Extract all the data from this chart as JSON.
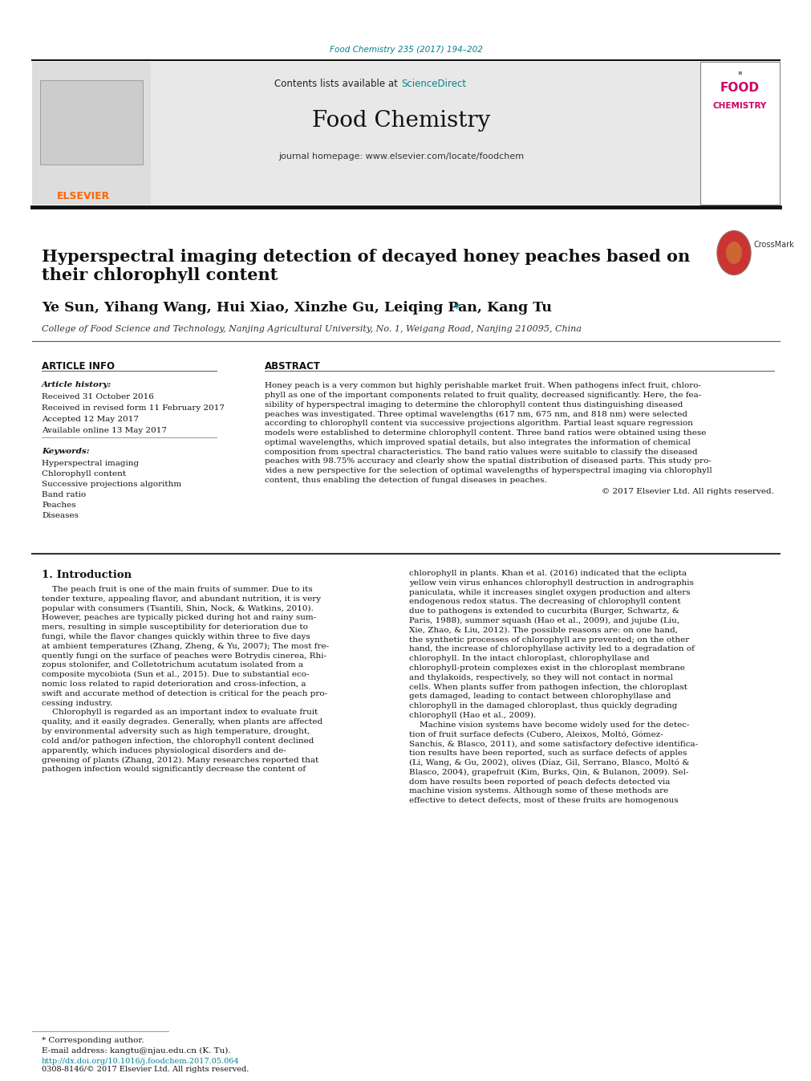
{
  "journal_ref": "Food Chemistry 235 (2017) 194–202",
  "journal_ref_color": "#00838F",
  "header_bg": "#E8E8E8",
  "contents_text": "Contents lists available at ",
  "sciencedirect_text": "ScienceDirect",
  "sciencedirect_color": "#00838F",
  "journal_name": "Food Chemistry",
  "journal_homepage": "journal homepage: www.elsevier.com/locate/foodchem",
  "elsevier_color": "#FF6600",
  "title": "Hyperspectral imaging detection of decayed honey peaches based on\ntheir chlorophyll content",
  "authors": "Ye Sun, Yihang Wang, Hui Xiao, Xinzhe Gu, Leiqing Pan, Kang Tu",
  "author_star": "*",
  "affiliation": "College of Food Science and Technology, Nanjing Agricultural University, No. 1, Weigang Road, Nanjing 210095, China",
  "article_info_label": "ARTICLE INFO",
  "abstract_label": "ABSTRACT",
  "article_history_label": "Article history:",
  "received": "Received 31 October 2016",
  "revised": "Received in revised form 11 February 2017",
  "accepted": "Accepted 12 May 2017",
  "available": "Available online 13 May 2017",
  "keywords_label": "Keywords:",
  "keywords": [
    "Hyperspectral imaging",
    "Chlorophyll content",
    "Successive projections algorithm",
    "Band ratio",
    "Peaches",
    "Diseases"
  ],
  "abstract_text": "Honey peach is a very common but highly perishable market fruit. When pathogens infect fruit, chloro-phyll as one of the important components related to fruit quality, decreased significantly. Here, the fea-sibility of hyperspectral imaging to determine the chlorophyll content thus distinguishing diseased peaches was investigated. Three optimal wavelengths (617 nm, 675 nm, and 818 nm) were selected according to chlorophyll content via successive projections algorithm. Partial least square regression models were established to determine chlorophyll content. Three band ratios were obtained using these optimal wavelengths, which improved spatial details, but also integrates the information of chemical composition from spectral characteristics. The band ratio values were suitable to classify the diseased peaches with 98.75% accuracy and clearly show the spatial distribution of diseased parts. This study pro-vides a new perspective for the selection of optimal wavelengths of hyperspectral imaging via chlorophyll content, thus enabling the detection of fungal diseases in peaches.",
  "copyright": "© 2017 Elsevier Ltd. All rights reserved.",
  "intro_heading": "1. Introduction",
  "intro_col1": "The peach fruit is one of the main fruits of summer. Due to its tender texture, appealing flavor, and abundant nutrition, it is very popular with consumers (Tsantili, Shin, Nock, & Watkins, 2010). However, peaches are typically picked during hot and rainy sum-mers, resulting in simple susceptibility for deterioration due to fungi, while the flavor changes quickly within three to five days at ambient temperatures (Zhang, Zheng, & Yu, 2007); The most fre-quently fungi on the surface of peaches were Botrydis cinerea, Rhi-zopus stolonifer, and Colletotrichum acutatum isolated from a composite mycobiota (Sun et al., 2015). Due to substantial eco-nomic loss related to rapid deterioration and cross-infection, a swift and accurate method of detection is critical for the peach pro-cessing industry.\n    Chlorophyll is regarded as an important index to evaluate fruit quality, and it easily degrades. Generally, when plants are affected by environmental adversity such as high temperature, drought, cold and/or pathogen infection, the chlorophyll content declined apparently, which induces physiological disorders and de-greening of plants (Zhang, 2012). Many researches reported that pathogen infection would significantly decrease the content of",
  "intro_col2": "chlorophyll in plants. Khan et al. (2016) indicated that the eclipta yellow vein virus enhances chlorophyll destruction in andrographis paniculata, while it increases singlet oxygen production and alters endogenous redox status. The decreasing of chlorophyll content due to pathogens is extended to cucurbita (Burger, Schwartz, & Paris, 1988), summer squash (Hao et al., 2009), and jujube (Liu, Xie, Zhao, & Liu, 2012). The possible reasons are: on one hand, the synthetic processes of chlorophyll are prevented; on the other hand, the increase of chlorophyllase activity led to a degradation of chlorophyll. In the intact chloroplast, chlorophyllase and chlorophyll-protein complexes exist in the chloroplast membrane and thylakoids, respectively, so they will not contact in normal cells. When plants suffer from pathogen infection, the chloroplast gets damaged, leading to contact between chlorophyllase and chlorophyll in the damaged chloroplast, thus quickly degrading chlorophyll (Hao et al., 2009).\n    Machine vision systems have become widely used for the detec-tion of fruit surface defects (Cubero, Aleixos, Moltó, Gómez-Sanchis, & Blasco, 2011), and some satisfactory defective identifica-tion results have been reported, such as surface defects of apples (Li, Wang, & Gu, 2002), olives (Díaz, Gil, Serrano, Blasco, Moltó & Blasco, 2004), grapefruit (Kim, Burks, Qin, & Bulanon, 2009). Sel-dom have results been reported of peach defects detected via machine vision systems. Although some of these methods are effective to detect defects, most of these fruits are homogenous",
  "footnote_star": "* Corresponding author.",
  "footnote_email": "E-mail address: kangtu@njau.edu.cn (K. Tu).",
  "footnote_doi": "http://dx.doi.org/10.1016/j.foodchem.2017.05.064",
  "footnote_issn": "0308-8146/© 2017 Elsevier Ltd. All rights reserved.",
  "bg_color": "#FFFFFF",
  "text_color": "#000000",
  "separator_color": "#333333"
}
